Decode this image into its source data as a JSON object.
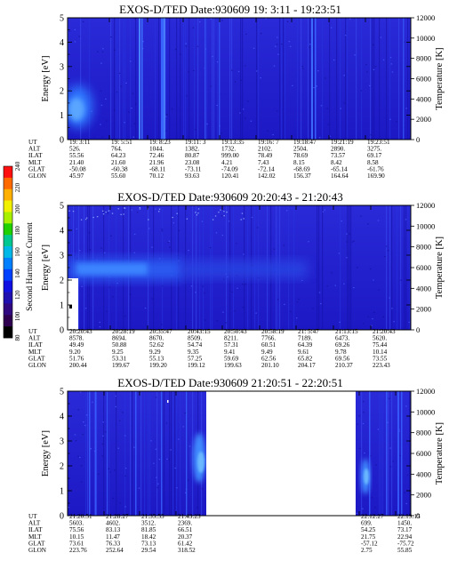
{
  "figure": {
    "colorbar": {
      "label": "Second Harmonic Current",
      "ticks": [
        "240",
        "220",
        "200",
        "180",
        "160",
        "140",
        "120",
        "100",
        "80"
      ],
      "colors": [
        "#ff1010",
        "#ff6a00",
        "#ffb000",
        "#f0f000",
        "#a8f000",
        "#20d000",
        "#00c890",
        "#00b8e8",
        "#0080ff",
        "#0040ff",
        "#1010e0",
        "#2010b0",
        "#300880",
        "#300050",
        "#000000"
      ]
    }
  },
  "chart_data": [
    {
      "type": "heatmap",
      "title": "EXOS-D/TED   Date:930609  19: 3:11 - 19:23:51",
      "ylabel": "Energy [eV]",
      "y2label": "Temperature [K]",
      "ylim": [
        0,
        5
      ],
      "y2lim": [
        0,
        12000
      ],
      "yticks": [
        "0",
        "1",
        "2",
        "3",
        "4",
        "5"
      ],
      "y2ticks": [
        "0",
        "2000",
        "4000",
        "6000",
        "8000",
        "10000",
        "12000"
      ],
      "table_rows": [
        "UT",
        "ALT",
        "ILAT",
        "MLT",
        "GLAT",
        "GLON"
      ],
      "columns": [
        [
          "19: 3:11",
          "526.",
          "55.56",
          "21.40",
          "-50.08",
          "45.97"
        ],
        [
          "19: 5:51",
          "764.",
          "64.23",
          "21.60",
          "-60.38",
          "55.60"
        ],
        [
          "19: 8:23",
          "1044.",
          "72.46",
          "21.96",
          "-68.11",
          "70.12"
        ],
        [
          "19:11: 3",
          "1382.",
          "80.87",
          "23.08",
          "-73.11",
          "93.63"
        ],
        [
          "19:13:35",
          "1732.",
          "999.00",
          "4.21",
          "-74.09",
          "120.41"
        ],
        [
          "19:16: 7",
          "2102.",
          "78.49",
          "7.43",
          "-72.14",
          "142.02"
        ],
        [
          "19:18:47",
          "2504.",
          "78.69",
          "8.15",
          "-68.69",
          "156.37"
        ],
        [
          "19:21:19",
          "2890.",
          "73.57",
          "8.42",
          "-65.14",
          "164.64"
        ],
        [
          "19:23:51",
          "3275.",
          "69.17",
          "8.58",
          "-61.76",
          "169.90"
        ]
      ]
    },
    {
      "type": "heatmap",
      "title": "EXOS-D/TED   Date:930609  20:20:43 - 21:20:43",
      "ylabel": "Energy [eV]",
      "y2label": "Temperature [K]",
      "ylim": [
        0,
        5
      ],
      "y2lim": [
        0,
        12000
      ],
      "yticks": [
        "0",
        "1",
        "2",
        "3",
        "4",
        "5"
      ],
      "y2ticks": [
        "0",
        "2000",
        "4000",
        "6000",
        "8000",
        "10000",
        "12000"
      ],
      "table_rows": [
        "UT",
        "ALT",
        "ILAT",
        "MLT",
        "GLAT",
        "GLON"
      ],
      "columns": [
        [
          "20:20:43",
          "8578.",
          "49.49",
          "9.20",
          "51.76",
          "200.44"
        ],
        [
          "20:28:19",
          "8694.",
          "50.88",
          "9.25",
          "53.31",
          "199.67"
        ],
        [
          "20:35:47",
          "8670.",
          "52.62",
          "9.29",
          "55.13",
          "199.20"
        ],
        [
          "20:43:15",
          "8509.",
          "54.74",
          "9.35",
          "57.25",
          "199.12"
        ],
        [
          "20:50:43",
          "8211.",
          "57.31",
          "9.41",
          "59.69",
          "199.63"
        ],
        [
          "20:58:19",
          "7766.",
          "60.51",
          "9.49",
          "62.56",
          "201.10"
        ],
        [
          "21: 5:47",
          "7189.",
          "64.39",
          "9.61",
          "65.82",
          "204.17"
        ],
        [
          "21:13:15",
          "6473.",
          "69.26",
          "9.78",
          "69.56",
          "210.37"
        ],
        [
          "21:20:43",
          "5620.",
          "75.44",
          "10.14",
          "73.55",
          "223.43"
        ]
      ]
    },
    {
      "type": "heatmap",
      "title": "EXOS-D/TED   Date:930609  21:20:51 - 22:20:51",
      "ylabel": "Energy [eV]",
      "y2label": "Temperature [K]",
      "ylim": [
        0,
        5
      ],
      "y2lim": [
        0,
        12000
      ],
      "yticks": [
        "0",
        "1",
        "2",
        "3",
        "4",
        "5"
      ],
      "y2ticks": [
        "0",
        "2000",
        "4000",
        "6000",
        "8000",
        "10000",
        "12000"
      ],
      "table_rows": [
        "UT",
        "ALT",
        "ILAT",
        "MLT",
        "GLAT",
        "GLON"
      ],
      "columns": [
        [
          "21:20:51",
          "5603.",
          "75.56",
          "10.15",
          "73.61",
          "223.76"
        ],
        [
          "21:28:27",
          "4602.",
          "83.13",
          "11.47",
          "76.33",
          "252.64"
        ],
        [
          "21:35:55",
          "3512.",
          "81.85",
          "18.42",
          "73.13",
          "29.54"
        ],
        [
          "21:43:23",
          "2369.",
          "66.51",
          "20.37",
          "61.42",
          "318.52"
        ],
        [
          "22:12:27",
          "699.",
          "54.25",
          "21.75",
          "-57.12",
          "2.75"
        ],
        [
          "22:19:15",
          "1450.",
          "73.17",
          "22.94",
          "-75.72",
          "55.85"
        ]
      ]
    }
  ]
}
